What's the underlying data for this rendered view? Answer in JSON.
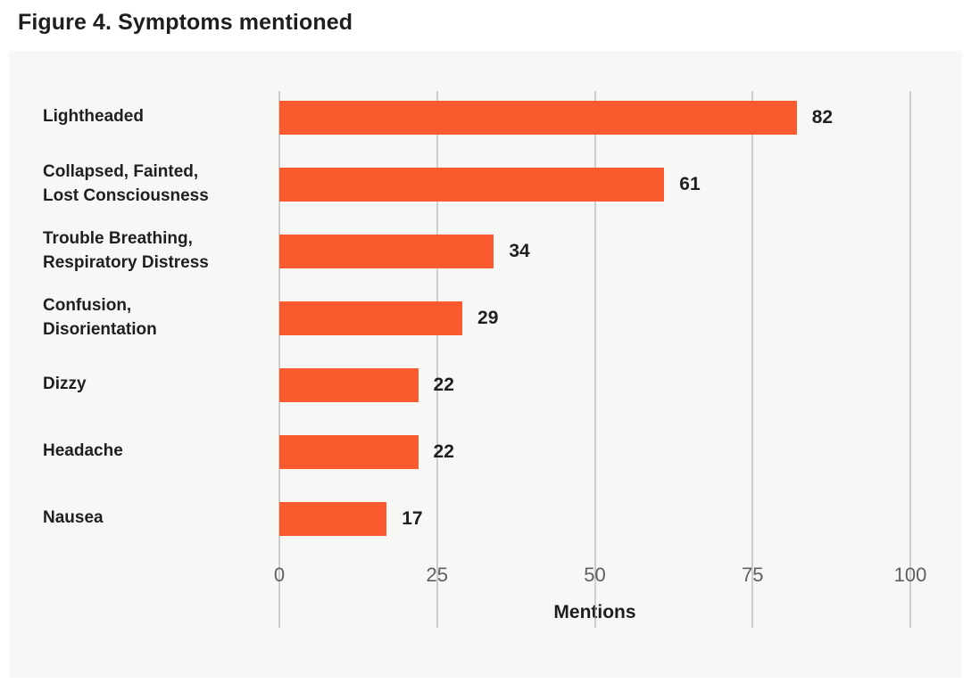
{
  "title": "Figure 4. Symptoms mentioned",
  "chart_data": {
    "type": "bar",
    "orientation": "horizontal",
    "title": "Figure 4. Symptoms mentioned",
    "categories": [
      "Lightheaded",
      "Collapsed, Fainted,\nLost Consciousness",
      "Trouble Breathing,\nRespiratory Distress",
      "Confusion,\nDisorientation",
      "Dizzy",
      "Headache",
      "Nausea"
    ],
    "values": [
      82,
      61,
      34,
      29,
      22,
      22,
      17
    ],
    "ticks": [
      0,
      25,
      50,
      75,
      100
    ],
    "xlim": [
      0,
      100
    ],
    "xlabel": "Mentions",
    "ylabel": "",
    "legend": "none",
    "grid": "vertical",
    "colors": {
      "bar": "#FA5A2D",
      "card_background": "#F7F7F6",
      "page_background": "#FFFFFF",
      "text": "#1E1E1E",
      "tick_text": "#5F5F5F",
      "gridline": "#A6A6A6"
    }
  }
}
